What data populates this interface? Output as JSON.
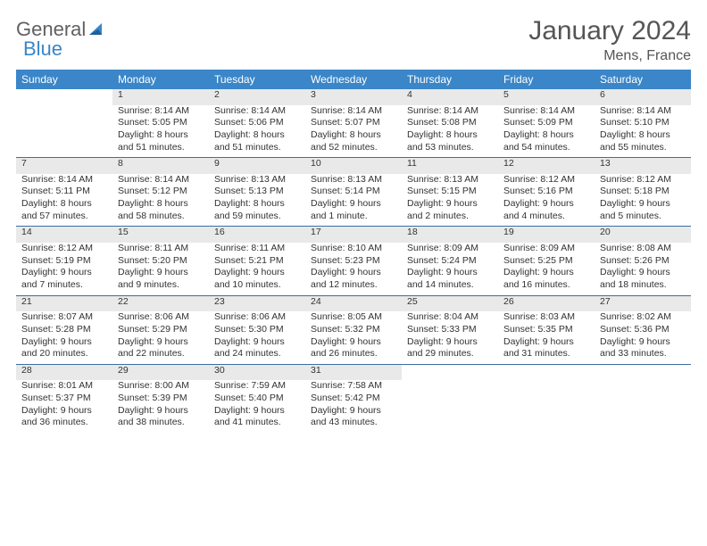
{
  "logo": {
    "word1": "General",
    "word2": "Blue"
  },
  "title": "January 2024",
  "location": "Mens, France",
  "colors": {
    "header_bg": "#3a86c8",
    "header_fg": "#ffffff",
    "daynum_bg": "#e9e9e9",
    "rule": "#3a6ea5",
    "text": "#333333",
    "logo_gray": "#606060",
    "logo_blue": "#3a86c8"
  },
  "columns": [
    "Sunday",
    "Monday",
    "Tuesday",
    "Wednesday",
    "Thursday",
    "Friday",
    "Saturday"
  ],
  "weeks": [
    {
      "nums": [
        "",
        "1",
        "2",
        "3",
        "4",
        "5",
        "6"
      ],
      "cells": [
        "",
        "Sunrise: 8:14 AM\nSunset: 5:05 PM\nDaylight: 8 hours and 51 minutes.",
        "Sunrise: 8:14 AM\nSunset: 5:06 PM\nDaylight: 8 hours and 51 minutes.",
        "Sunrise: 8:14 AM\nSunset: 5:07 PM\nDaylight: 8 hours and 52 minutes.",
        "Sunrise: 8:14 AM\nSunset: 5:08 PM\nDaylight: 8 hours and 53 minutes.",
        "Sunrise: 8:14 AM\nSunset: 5:09 PM\nDaylight: 8 hours and 54 minutes.",
        "Sunrise: 8:14 AM\nSunset: 5:10 PM\nDaylight: 8 hours and 55 minutes."
      ]
    },
    {
      "nums": [
        "7",
        "8",
        "9",
        "10",
        "11",
        "12",
        "13"
      ],
      "cells": [
        "Sunrise: 8:14 AM\nSunset: 5:11 PM\nDaylight: 8 hours and 57 minutes.",
        "Sunrise: 8:14 AM\nSunset: 5:12 PM\nDaylight: 8 hours and 58 minutes.",
        "Sunrise: 8:13 AM\nSunset: 5:13 PM\nDaylight: 8 hours and 59 minutes.",
        "Sunrise: 8:13 AM\nSunset: 5:14 PM\nDaylight: 9 hours and 1 minute.",
        "Sunrise: 8:13 AM\nSunset: 5:15 PM\nDaylight: 9 hours and 2 minutes.",
        "Sunrise: 8:12 AM\nSunset: 5:16 PM\nDaylight: 9 hours and 4 minutes.",
        "Sunrise: 8:12 AM\nSunset: 5:18 PM\nDaylight: 9 hours and 5 minutes."
      ]
    },
    {
      "nums": [
        "14",
        "15",
        "16",
        "17",
        "18",
        "19",
        "20"
      ],
      "cells": [
        "Sunrise: 8:12 AM\nSunset: 5:19 PM\nDaylight: 9 hours and 7 minutes.",
        "Sunrise: 8:11 AM\nSunset: 5:20 PM\nDaylight: 9 hours and 9 minutes.",
        "Sunrise: 8:11 AM\nSunset: 5:21 PM\nDaylight: 9 hours and 10 minutes.",
        "Sunrise: 8:10 AM\nSunset: 5:23 PM\nDaylight: 9 hours and 12 minutes.",
        "Sunrise: 8:09 AM\nSunset: 5:24 PM\nDaylight: 9 hours and 14 minutes.",
        "Sunrise: 8:09 AM\nSunset: 5:25 PM\nDaylight: 9 hours and 16 minutes.",
        "Sunrise: 8:08 AM\nSunset: 5:26 PM\nDaylight: 9 hours and 18 minutes."
      ]
    },
    {
      "nums": [
        "21",
        "22",
        "23",
        "24",
        "25",
        "26",
        "27"
      ],
      "cells": [
        "Sunrise: 8:07 AM\nSunset: 5:28 PM\nDaylight: 9 hours and 20 minutes.",
        "Sunrise: 8:06 AM\nSunset: 5:29 PM\nDaylight: 9 hours and 22 minutes.",
        "Sunrise: 8:06 AM\nSunset: 5:30 PM\nDaylight: 9 hours and 24 minutes.",
        "Sunrise: 8:05 AM\nSunset: 5:32 PM\nDaylight: 9 hours and 26 minutes.",
        "Sunrise: 8:04 AM\nSunset: 5:33 PM\nDaylight: 9 hours and 29 minutes.",
        "Sunrise: 8:03 AM\nSunset: 5:35 PM\nDaylight: 9 hours and 31 minutes.",
        "Sunrise: 8:02 AM\nSunset: 5:36 PM\nDaylight: 9 hours and 33 minutes."
      ]
    },
    {
      "nums": [
        "28",
        "29",
        "30",
        "31",
        "",
        "",
        ""
      ],
      "cells": [
        "Sunrise: 8:01 AM\nSunset: 5:37 PM\nDaylight: 9 hours and 36 minutes.",
        "Sunrise: 8:00 AM\nSunset: 5:39 PM\nDaylight: 9 hours and 38 minutes.",
        "Sunrise: 7:59 AM\nSunset: 5:40 PM\nDaylight: 9 hours and 41 minutes.",
        "Sunrise: 7:58 AM\nSunset: 5:42 PM\nDaylight: 9 hours and 43 minutes.",
        "",
        "",
        ""
      ]
    }
  ]
}
